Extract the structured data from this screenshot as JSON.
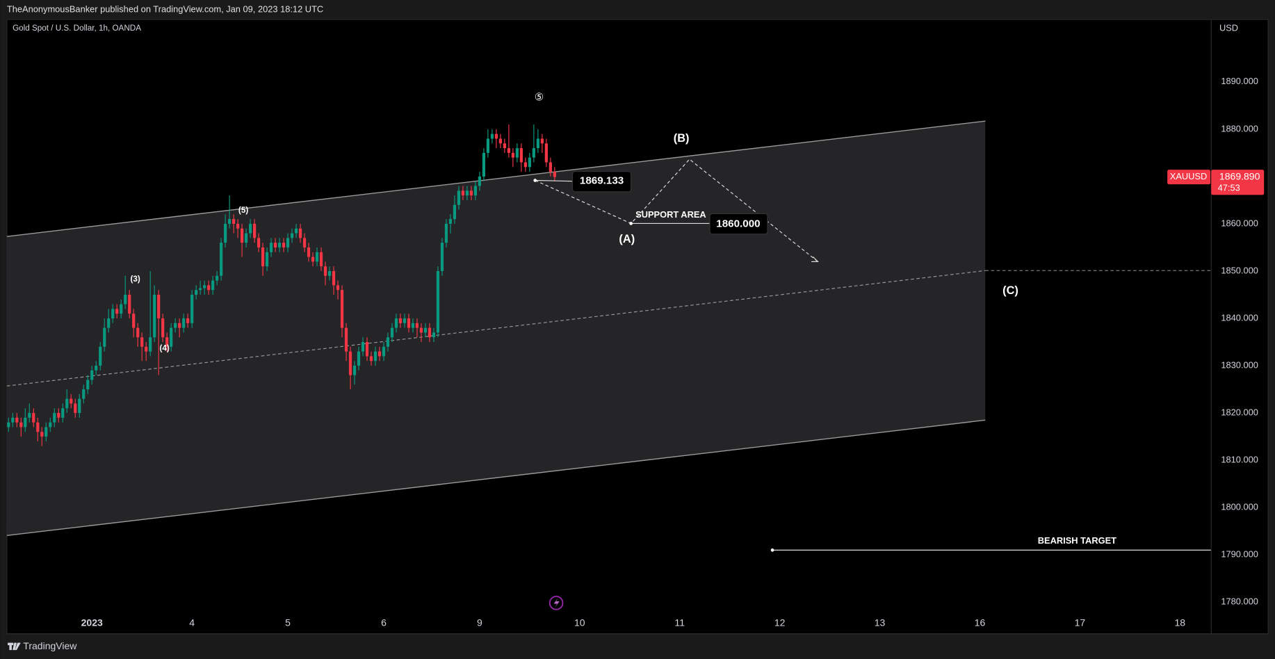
{
  "header": "TheAnonymousBanker published on TradingView.com, Jan 09, 2023 18:12 UTC",
  "footer": "TradingView",
  "chart_data": {
    "type": "candlestick",
    "title": "Gold Spot / U.S. Dollar, 1h, OANDA",
    "currency": "USD",
    "symbol": "XAUUSD",
    "last_price": {
      "value": 1869.89,
      "label": "1869.890"
    },
    "countdown": "47:53",
    "up_color": "#089981",
    "down_color": "#f23645",
    "ylim": [
      1773.3,
      1903.2
    ],
    "yticks": [
      {
        "value": 1780,
        "label": "1780.000"
      },
      {
        "value": 1790,
        "label": "1790.000"
      },
      {
        "value": 1800,
        "label": "1800.000"
      },
      {
        "value": 1810,
        "label": "1810.000"
      },
      {
        "value": 1820,
        "label": "1820.000"
      },
      {
        "value": 1830,
        "label": "1830.000"
      },
      {
        "value": 1840,
        "label": "1840.000"
      },
      {
        "value": 1850,
        "label": "1850.000"
      },
      {
        "value": 1860,
        "label": "1860.000"
      },
      {
        "value": 1870,
        "label": "1870.000"
      },
      {
        "value": 1880,
        "label": "1880.000"
      },
      {
        "value": 1890,
        "label": "1890.000"
      }
    ],
    "xlim": [
      -0.4,
      288.5
    ],
    "xticks": [
      {
        "value": 20,
        "label": "2023"
      },
      {
        "value": 44,
        "label": "4"
      },
      {
        "value": 67,
        "label": "5"
      },
      {
        "value": 90,
        "label": "6"
      },
      {
        "value": 113,
        "label": "9"
      },
      {
        "value": 137,
        "label": "10"
      },
      {
        "value": 161,
        "label": "11"
      },
      {
        "value": 185,
        "label": "12"
      },
      {
        "value": 209,
        "label": "13"
      },
      {
        "value": 233,
        "label": "16"
      },
      {
        "value": 257,
        "label": "17"
      },
      {
        "value": 281,
        "label": "18"
      }
    ],
    "x": [
      0,
      1,
      2,
      3,
      4,
      5,
      6,
      7,
      8,
      9,
      10,
      11,
      12,
      13,
      14,
      15,
      16,
      17,
      18,
      19,
      20,
      21,
      22,
      23,
      24,
      25,
      26,
      27,
      28,
      29,
      30,
      31,
      32,
      33,
      34,
      35,
      36,
      37,
      38,
      39,
      40,
      41,
      42,
      43,
      44,
      45,
      46,
      47,
      48,
      49,
      50,
      51,
      52,
      53,
      54,
      55,
      56,
      57,
      58,
      59,
      60,
      61,
      62,
      63,
      64,
      65,
      66,
      67,
      68,
      69,
      70,
      71,
      72,
      73,
      74,
      75,
      76,
      77,
      78,
      79,
      80,
      81,
      82,
      83,
      84,
      85,
      86,
      87,
      88,
      89,
      90,
      91,
      92,
      93,
      94,
      95,
      96,
      97,
      98,
      99,
      100,
      101,
      102,
      103,
      104,
      105,
      106,
      107,
      108,
      109,
      110,
      111,
      112,
      113,
      114,
      115,
      116,
      117,
      118,
      119,
      120,
      121,
      122,
      123,
      124,
      125,
      126,
      127,
      128,
      129,
      130,
      131
    ],
    "open": [
      1817,
      1818,
      1819,
      1818,
      1817,
      1819,
      1820,
      1818,
      1816,
      1815,
      1817,
      1818,
      1820,
      1819,
      1821,
      1823,
      1822,
      1820,
      1823,
      1825,
      1827,
      1829,
      1830,
      1834,
      1838,
      1840,
      1842,
      1841,
      1843,
      1845,
      1841,
      1838,
      1836,
      1834,
      1833,
      1836,
      1845,
      1840,
      1836,
      1834,
      1838,
      1839,
      1838,
      1840,
      1839,
      1845,
      1846,
      1846.4,
      1847,
      1846,
      1848,
      1849,
      1856,
      1860,
      1861,
      1860,
      1859,
      1856,
      1858,
      1860,
      1857,
      1855,
      1851,
      1854,
      1856,
      1855,
      1856,
      1855,
      1857,
      1858,
      1859,
      1857,
      1855,
      1853,
      1852,
      1854,
      1851,
      1849,
      1850,
      1847,
      1846,
      1838,
      1833,
      1828,
      1830,
      1833,
      1835,
      1832,
      1831,
      1833,
      1832,
      1834,
      1836,
      1838,
      1840,
      1839,
      1840,
      1838,
      1839,
      1838,
      1837,
      1838,
      1836,
      1837,
      1850,
      1856,
      1860,
      1861,
      1864,
      1867,
      1866,
      1867,
      1866,
      1868,
      1870,
      1875,
      1878,
      1879,
      1878,
      1877,
      1876,
      1875,
      1874,
      1876,
      1873,
      1872,
      1874,
      1876,
      1878,
      1877,
      1873,
      1871
    ],
    "high": [
      1819,
      1820,
      1820,
      1819,
      1821,
      1822,
      1821,
      1819,
      1817,
      1818,
      1819,
      1821,
      1821,
      1822,
      1825,
      1824,
      1823,
      1824,
      1826,
      1828,
      1830,
      1831,
      1835,
      1840,
      1842,
      1843,
      1843,
      1844,
      1849,
      1846,
      1842,
      1839,
      1837,
      1835,
      1850,
      1847,
      1846,
      1841,
      1837,
      1839,
      1840,
      1840,
      1841,
      1841,
      1846,
      1847,
      1848,
      1848,
      1848,
      1849,
      1850,
      1857,
      1862,
      1866,
      1862,
      1861,
      1860,
      1859,
      1861,
      1861,
      1858,
      1856,
      1855,
      1857,
      1857,
      1857,
      1857,
      1858,
      1859,
      1860,
      1860,
      1858,
      1856,
      1854,
      1855,
      1855,
      1852,
      1851,
      1851,
      1848,
      1847,
      1839,
      1834,
      1831,
      1834,
      1836,
      1836,
      1833,
      1834,
      1834,
      1835,
      1837,
      1839,
      1841,
      1841,
      1841,
      1841,
      1840,
      1840,
      1839,
      1839,
      1839,
      1838,
      1851,
      1857,
      1861,
      1862,
      1866,
      1868,
      1868,
      1868,
      1868,
      1869,
      1871,
      1876,
      1880,
      1880,
      1880,
      1879,
      1878,
      1881,
      1876,
      1877,
      1877,
      1874,
      1875,
      1881,
      1880,
      1879,
      1878,
      1874,
      1872
    ],
    "low": [
      1816,
      1817,
      1817,
      1815,
      1816,
      1818,
      1817,
      1814,
      1813,
      1814,
      1816,
      1817,
      1818,
      1818,
      1820,
      1821,
      1819,
      1819,
      1822,
      1824,
      1826,
      1828,
      1829,
      1833,
      1837,
      1839,
      1840,
      1840,
      1842,
      1840,
      1836,
      1834,
      1831,
      1831,
      1832,
      1835,
      1828,
      1835,
      1833,
      1833,
      1837,
      1836,
      1837,
      1838,
      1838,
      1844,
      1845,
      1845,
      1845,
      1845,
      1847,
      1848,
      1855,
      1859,
      1858,
      1857,
      1853,
      1855,
      1857,
      1856,
      1854,
      1849,
      1850,
      1853,
      1854,
      1854,
      1854,
      1854,
      1856,
      1857,
      1856,
      1854,
      1852,
      1851,
      1851,
      1850,
      1847,
      1848,
      1845,
      1844,
      1836,
      1831,
      1825,
      1826,
      1829,
      1832,
      1831,
      1830,
      1830,
      1831,
      1831,
      1833,
      1835,
      1837,
      1838,
      1838,
      1837,
      1837,
      1836,
      1835,
      1836,
      1835,
      1835,
      1836,
      1849,
      1855,
      1858,
      1860,
      1863,
      1865,
      1865,
      1865,
      1865,
      1867,
      1869,
      1874,
      1877,
      1876,
      1876,
      1875,
      1874,
      1872,
      1873,
      1871,
      1871,
      1871,
      1873,
      1875,
      1875,
      1872,
      1870,
      1869
    ],
    "close": [
      1818,
      1819,
      1818,
      1817,
      1819,
      1820,
      1818,
      1816,
      1815,
      1817,
      1818,
      1820,
      1819,
      1821,
      1823,
      1822,
      1820,
      1823,
      1825,
      1827,
      1829,
      1830,
      1834,
      1838,
      1840,
      1842,
      1841,
      1843,
      1845,
      1841,
      1838,
      1836,
      1834,
      1833,
      1836,
      1845,
      1840,
      1836,
      1834,
      1838,
      1839,
      1838,
      1840,
      1839,
      1845,
      1846,
      1846.4,
      1847,
      1846,
      1848,
      1849,
      1856,
      1860,
      1861,
      1860,
      1859,
      1856,
      1858,
      1860,
      1857,
      1855,
      1851,
      1854,
      1856,
      1855,
      1856,
      1855,
      1857,
      1858,
      1859,
      1857,
      1855,
      1853,
      1852,
      1854,
      1851,
      1849,
      1850,
      1847,
      1846,
      1838,
      1833,
      1828,
      1830,
      1833,
      1835,
      1832,
      1831,
      1833,
      1832,
      1834,
      1836,
      1838,
      1840,
      1839,
      1840,
      1838,
      1839,
      1838,
      1837,
      1838,
      1836,
      1837,
      1850,
      1856,
      1860,
      1861,
      1864,
      1867,
      1866,
      1867,
      1866,
      1868,
      1870,
      1875,
      1878,
      1879,
      1878,
      1877,
      1876,
      1875,
      1874,
      1876,
      1873,
      1872,
      1874,
      1876,
      1878,
      1877,
      1873,
      1871,
      1869.89
    ],
    "annotations": [
      "(3)",
      "(4)",
      "(5)",
      "⑤",
      "1869.133",
      "SUPPORT AREA",
      "1860.000",
      "(A)",
      "(B)",
      "(C)",
      "BEARISH TARGET"
    ]
  }
}
